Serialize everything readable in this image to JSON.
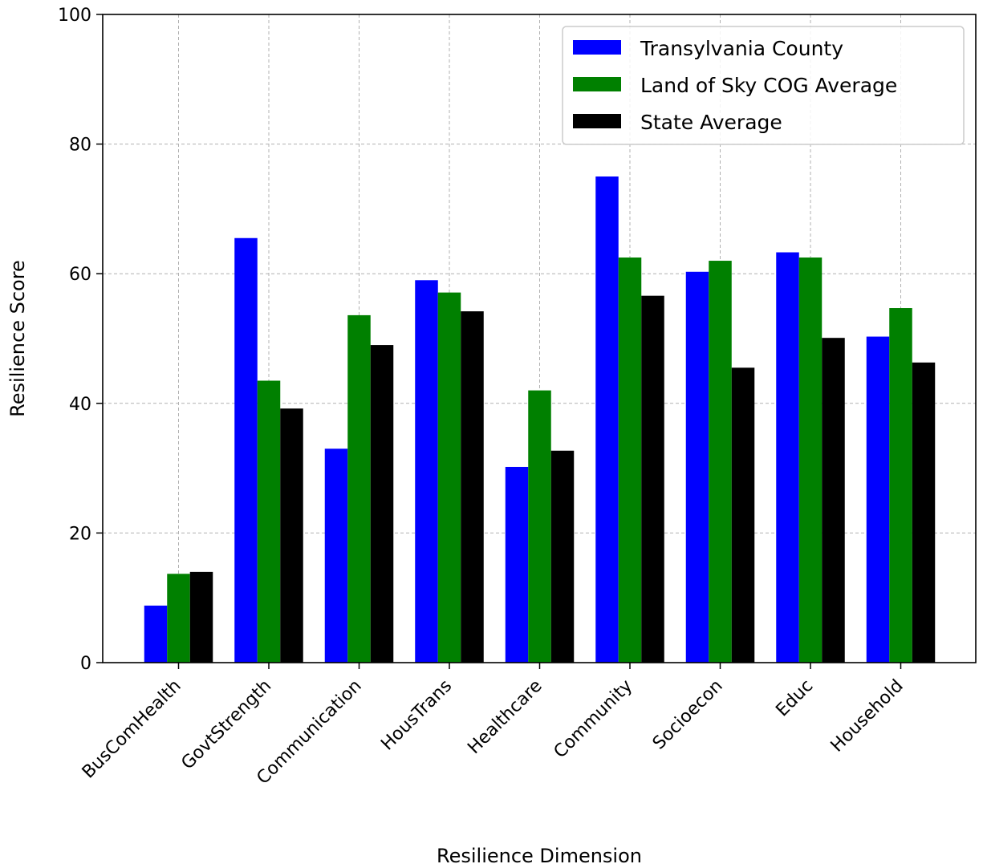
{
  "chart_data": {
    "type": "bar",
    "categories": [
      "BusComHealth",
      "GovtStrength",
      "Communication",
      "HousTrans",
      "Healthcare",
      "Community",
      "Socioecon",
      "Educ",
      "Household"
    ],
    "series": [
      {
        "name": "Transylvania County",
        "color": "#0000ff",
        "values": [
          8.8,
          65.5,
          33.0,
          59.0,
          30.2,
          75.0,
          60.3,
          63.3,
          50.3
        ]
      },
      {
        "name": "Land of Sky COG Average",
        "color": "#008000",
        "values": [
          13.7,
          43.5,
          53.6,
          57.1,
          42.0,
          62.5,
          62.0,
          62.5,
          54.7
        ]
      },
      {
        "name": "State Average",
        "color": "#000000",
        "values": [
          14.0,
          39.2,
          49.0,
          54.2,
          32.7,
          56.6,
          45.5,
          50.1,
          46.3
        ]
      }
    ],
    "xlabel": "Resilience Dimension",
    "ylabel": "Resilience Score",
    "ylim": [
      0,
      100
    ],
    "yticks": [
      "0",
      "20",
      "40",
      "60",
      "80",
      "100"
    ],
    "grid": true,
    "legend_position": "top-right"
  }
}
